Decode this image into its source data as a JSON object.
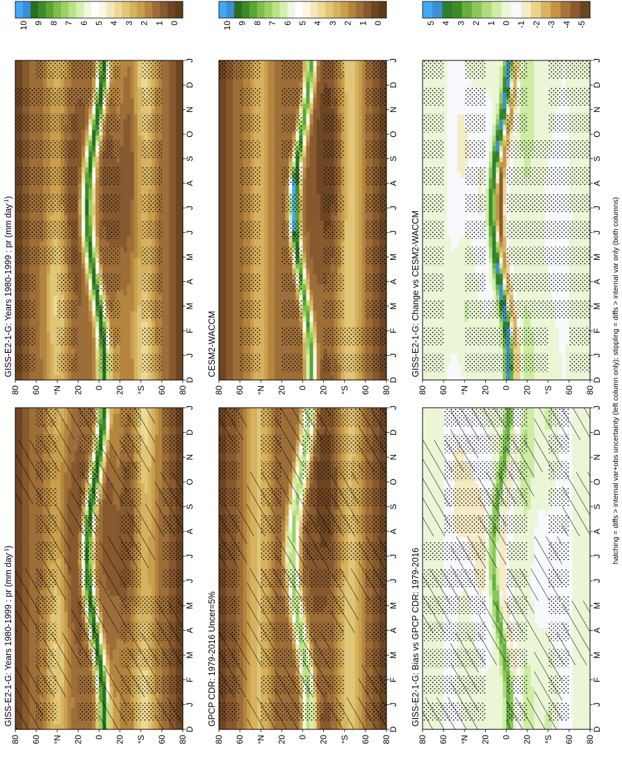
{
  "chart_data": {
    "type": "heatmap",
    "orientation": "rotated-90-ccw",
    "footnote": "hatching = diffs > internal var+obs uncertainty (left column only); stippling = diffs > internal var only (both columns)",
    "months": [
      "D",
      "J",
      "F",
      "M",
      "A",
      "M",
      "J",
      "J",
      "A",
      "S",
      "O",
      "N",
      "D",
      "J"
    ],
    "lat_labels": [
      "80",
      "60",
      "°N",
      "20",
      "0",
      "20",
      "°S",
      "60",
      "80"
    ],
    "colors": {
      "precip": [
        "#5e3c1a",
        "#6e4622",
        "#87592e",
        "#9e6e39",
        "#b5853f",
        "#c89f4d",
        "#d6b25f",
        "#e1c677",
        "#ecd994",
        "#f4e8b8",
        "#fbf6e2",
        "#ffffff",
        "#eef7e0",
        "#d4efae",
        "#b9e486",
        "#9bd268",
        "#7dbf4a",
        "#5aa535",
        "#3e8a2a",
        "#2a6e23",
        "#3d8ed6",
        "#3fa9f5"
      ],
      "diff": [
        "#6b4520",
        "#8a5a2e",
        "#a8733b",
        "#c59344",
        "#d9b462",
        "#ead48a",
        "#f5ebc4",
        "#f8f9fd",
        "#eaf6d6",
        "#cdeca4",
        "#aedb7e",
        "#8cc75c",
        "#66ae3f",
        "#3e8b2b",
        "#2f7d2d",
        "#3d8ed6",
        "#3fa9f5"
      ]
    },
    "panels": [
      {
        "title": "GISS-E2-1-G: Years 1980-1999 : pr (mm day",
        "title_sup": "-1",
        "title_end": ")",
        "field": "model",
        "hatching": true,
        "stippling": true,
        "colorbar_ticks": [
          "10",
          "9",
          "8",
          "7",
          "6",
          "5",
          "4",
          "3",
          "2",
          "1",
          "0"
        ]
      },
      {
        "title": "GISS-E2-1-G: Years 1980-1999 : pr (mm day",
        "title_sup": "-1",
        "title_end": ")",
        "field": "model",
        "hatching": false,
        "stippling": true,
        "colorbar_ticks": [
          "10",
          "9",
          "8",
          "7",
          "6",
          "5",
          "4",
          "3",
          "2",
          "1",
          "0"
        ]
      },
      {
        "title": "GPCP CDR: 1979-2016 Uncer=5%",
        "field": "obs",
        "hatching": true,
        "stippling": true,
        "colorbar_ticks": [
          "10",
          "9",
          "8",
          "7",
          "6",
          "5",
          "4",
          "3",
          "2",
          "1",
          "0"
        ]
      },
      {
        "title": "CESM2-WACCM",
        "field": "cesm",
        "hatching": false,
        "stippling": true,
        "colorbar_ticks": [
          "10",
          "9",
          "8",
          "7",
          "6",
          "5",
          "4",
          "3",
          "2",
          "1",
          "0"
        ]
      },
      {
        "title": "GISS-E2-1-G: Bias vs GPCP CDR: 1979-2016",
        "field": "bias",
        "hatching": true,
        "stippling": true,
        "colorbar_ticks": [
          "5",
          "4",
          "3",
          "2",
          "1",
          "0",
          "-1",
          "-2",
          "-3",
          "-4",
          "-5"
        ]
      },
      {
        "title": "GISS-E2-1-G: Change vs CESM2-WACCM",
        "field": "change",
        "hatching": false,
        "stippling": true,
        "colorbar_ticks": [
          "5",
          "4",
          "3",
          "2",
          "1",
          "0",
          "-1",
          "-2",
          "-3",
          "-4",
          "-5"
        ]
      }
    ]
  }
}
